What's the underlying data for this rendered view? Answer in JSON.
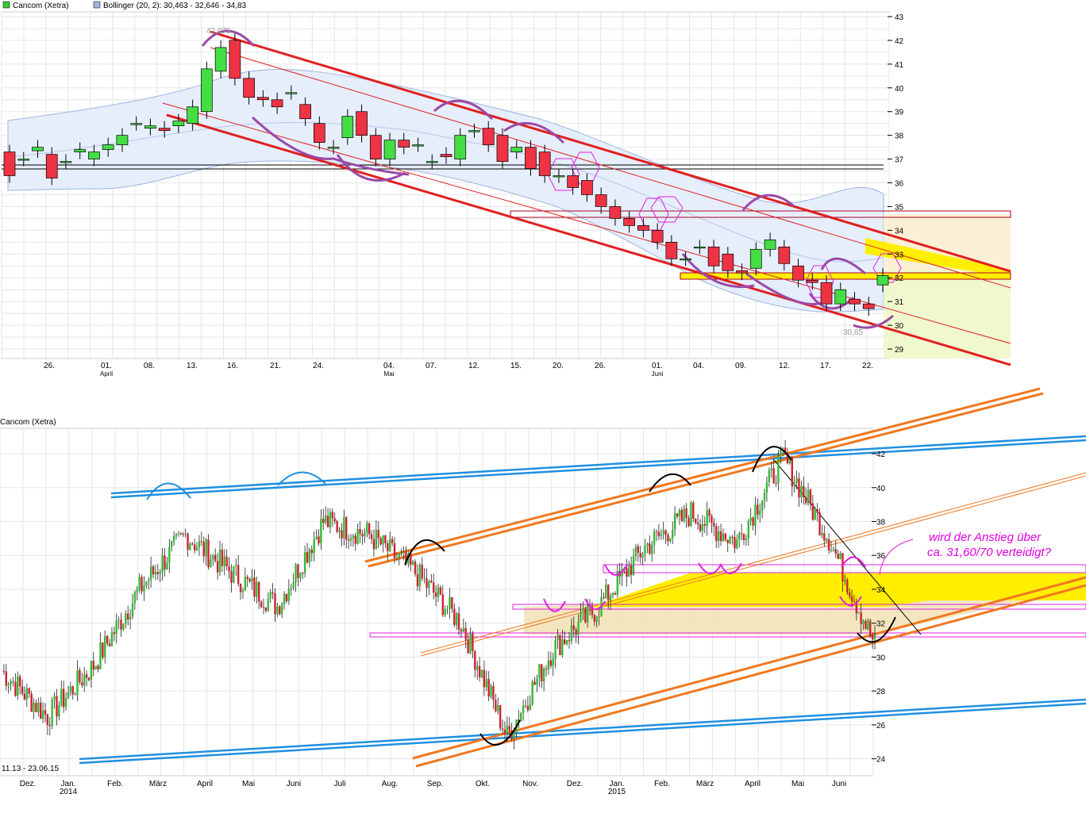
{
  "top_chart": {
    "legend": [
      {
        "label": "Cancom (Xetra)",
        "color": "#33cc33"
      },
      {
        "label": "Bollinger (20, 2): 30,463 - 32,646 - 34,83",
        "color": "#9fb3e0"
      }
    ],
    "y_ticks": [
      "43",
      "42",
      "41",
      "40",
      "39",
      "38",
      "37",
      "36",
      "35",
      "34",
      "33",
      "32",
      "31",
      "30",
      "29"
    ],
    "x_ticks": [
      "26.",
      "01.",
      "08.",
      "13.",
      "16.",
      "21.",
      "24.",
      "04.",
      "07.",
      "12.",
      "15.",
      "20.",
      "26.",
      "01.",
      "04.",
      "09.",
      "12.",
      "17.",
      "22."
    ],
    "month_labels": [
      "April",
      "Mai",
      "Juni"
    ],
    "high_label": "42,075",
    "low_label": "30,65"
  },
  "bottom_chart": {
    "title": "Cancom (Xetra)",
    "y_ticks": [
      "42",
      "40",
      "38",
      "36",
      "34",
      "32",
      "30",
      "28",
      "26",
      "24"
    ],
    "x_ticks": [
      "Dez.",
      "Jan.",
      "Feb.",
      "März",
      "April",
      "Mai",
      "Juni",
      "Juli",
      "Aug.",
      "Sep.",
      "Okt.",
      "Nov.",
      "Dez.",
      "Jan.",
      "Feb.",
      "März",
      "April",
      "Mai",
      "Juni"
    ],
    "year_labels": [
      "2014",
      "2015"
    ],
    "date_range": "11.13 - 23.06.15",
    "annotation_line1": "wird der Anstieg über",
    "annotation_line2": "ca. 31,60/70 verteidigt?"
  },
  "chart_data": [
    {
      "type": "candlestick",
      "ylim": [
        28.6,
        43.2
      ],
      "x": [
        "23.03.",
        "24.03.",
        "25.03.",
        "26.03.",
        "27.03.",
        "30.03.",
        "31.03.",
        "01.04.",
        "02.04.",
        "07.04.",
        "08.04.",
        "09.04.",
        "10.04.",
        "13.04.",
        "14.04.",
        "15.04.",
        "16.04.",
        "17.04.",
        "20.04.",
        "21.04.",
        "22.04.",
        "23.04.",
        "24.04.",
        "27.04.",
        "28.04.",
        "29.04.",
        "30.04.",
        "04.05.",
        "05.05.",
        "06.05.",
        "07.05.",
        "08.05.",
        "11.05.",
        "12.05.",
        "13.05.",
        "14.05.",
        "15.05.",
        "18.05.",
        "19.05.",
        "20.05.",
        "21.05.",
        "22.05.",
        "26.05.",
        "27.05.",
        "28.05.",
        "29.05.",
        "01.06.",
        "02.06.",
        "03.06.",
        "04.06.",
        "05.06.",
        "08.06.",
        "09.06.",
        "10.06.",
        "11.06.",
        "12.06.",
        "15.06.",
        "16.06.",
        "17.06.",
        "18.06.",
        "19.06.",
        "22.06.",
        "23.06."
      ],
      "open": [
        37.3,
        37.0,
        37.35,
        37.2,
        36.9,
        37.3,
        37.0,
        37.4,
        37.6,
        38.5,
        38.3,
        38.3,
        38.4,
        38.5,
        39.0,
        40.7,
        42.0,
        40.4,
        39.6,
        39.5,
        39.8,
        39.3,
        38.5,
        37.5,
        37.9,
        39.0,
        38.0,
        37.0,
        37.8,
        37.6,
        36.9,
        37.2,
        37.0,
        38.2,
        38.3,
        38.0,
        37.3,
        37.5,
        37.3,
        36.3,
        36.3,
        36.1,
        35.5,
        35.0,
        34.5,
        34.2,
        34.0,
        33.5,
        32.8,
        33.3,
        33.3,
        33.0,
        32.3,
        32.4,
        33.2,
        33.3,
        32.5,
        31.9,
        31.8,
        30.9,
        31.1,
        30.9,
        31.7
      ],
      "close": [
        36.3,
        37.0,
        37.5,
        36.2,
        36.9,
        37.4,
        37.3,
        37.6,
        38.0,
        38.5,
        38.4,
        38.2,
        38.6,
        39.2,
        40.8,
        41.7,
        40.4,
        39.6,
        39.5,
        39.2,
        39.8,
        38.7,
        37.7,
        37.5,
        38.8,
        38.0,
        37.0,
        37.8,
        37.5,
        37.6,
        36.9,
        37.1,
        38.0,
        38.2,
        37.6,
        36.9,
        37.5,
        36.6,
        36.3,
        36.3,
        35.8,
        35.5,
        35.0,
        34.5,
        34.2,
        34.0,
        33.5,
        32.8,
        32.8,
        33.3,
        32.5,
        32.3,
        32.2,
        33.2,
        33.6,
        32.6,
        31.9,
        31.8,
        30.9,
        31.5,
        30.9,
        30.7,
        32.1
      ]
    },
    {
      "type": "line",
      "ylim": [
        23.0,
        43.5
      ],
      "x": [
        "2013-11",
        "2013-12",
        "2014-01",
        "2014-02",
        "2014-03",
        "2014-04",
        "2014-05",
        "2014-06",
        "2014-07",
        "2014-08",
        "2014-09",
        "2014-10",
        "2014-11",
        "2014-12",
        "2015-01",
        "2015-02",
        "2015-03",
        "2015-04",
        "2015-05",
        "2015-06"
      ],
      "series": [
        {
          "values": [
            29.2,
            26.5,
            29.5,
            34.0,
            37.2,
            35.0,
            33.0,
            38.0,
            37.2,
            35.0,
            32.0,
            25.3,
            30.5,
            33.0,
            36.5,
            38.5,
            36.8,
            41.8,
            37.0,
            30.7
          ]
        }
      ]
    }
  ]
}
